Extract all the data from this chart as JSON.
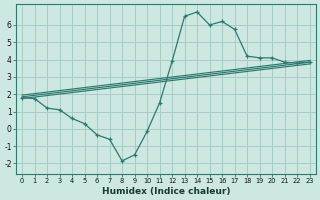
{
  "xlabel": "Humidex (Indice chaleur)",
  "background_color": "#cce8e0",
  "grid_color": "#a8ccc4",
  "line_color": "#2d7a6e",
  "xlim": [
    -0.5,
    23.5
  ],
  "ylim": [
    -2.6,
    7.2
  ],
  "xticks": [
    0,
    1,
    2,
    3,
    4,
    5,
    6,
    7,
    8,
    9,
    10,
    11,
    12,
    13,
    14,
    15,
    16,
    17,
    18,
    19,
    20,
    21,
    22,
    23
  ],
  "yticks": [
    -2,
    -1,
    0,
    1,
    2,
    3,
    4,
    5,
    6
  ],
  "curve1_x": [
    0,
    1,
    2,
    3,
    4,
    5,
    6,
    7,
    8,
    9,
    10,
    11,
    12,
    13,
    14,
    15,
    16,
    17,
    18,
    19,
    20,
    21,
    22,
    23
  ],
  "curve1_y": [
    1.8,
    1.75,
    1.2,
    1.1,
    0.6,
    0.3,
    -0.35,
    -0.6,
    -1.85,
    -1.5,
    -0.15,
    1.5,
    3.9,
    6.5,
    6.75,
    6.0,
    6.2,
    5.75,
    4.2,
    4.1,
    4.1,
    3.85,
    3.8,
    3.85
  ],
  "reg_lines": [
    {
      "x": [
        0,
        23
      ],
      "y": [
        1.75,
        3.75
      ]
    },
    {
      "x": [
        0,
        23
      ],
      "y": [
        1.85,
        3.85
      ]
    },
    {
      "x": [
        0,
        23
      ],
      "y": [
        1.95,
        3.95
      ]
    }
  ]
}
